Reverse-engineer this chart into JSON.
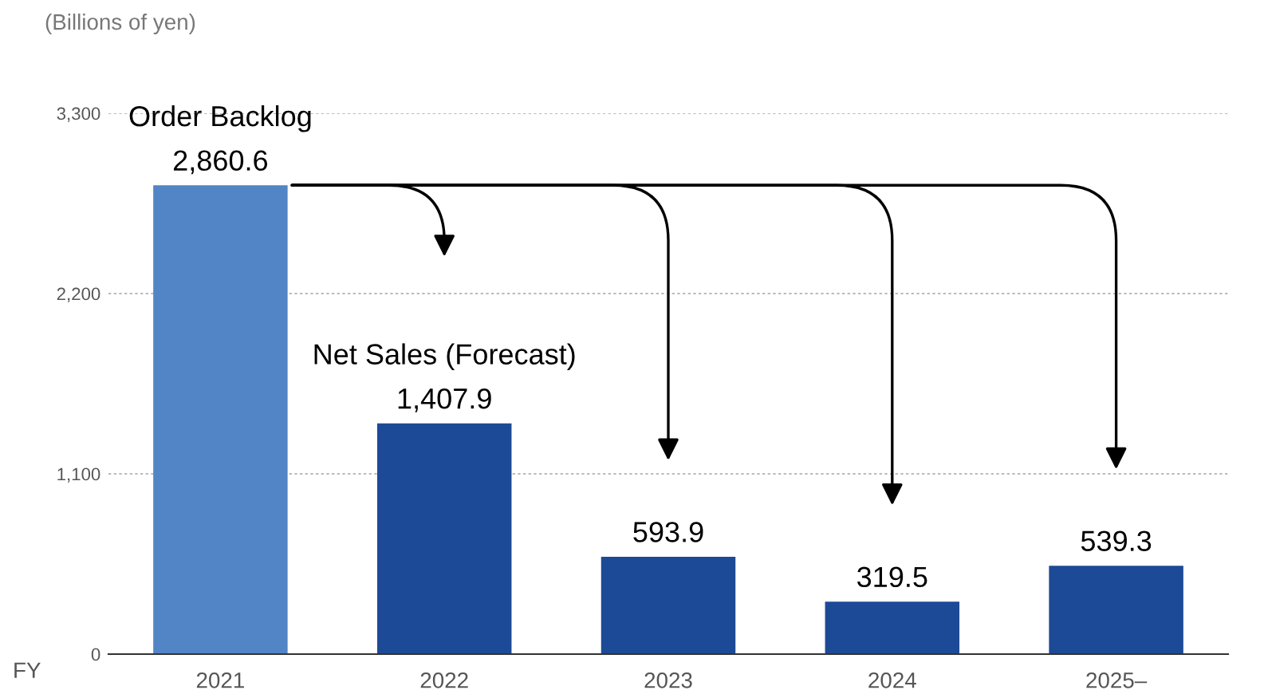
{
  "chart_data": {
    "type": "bar",
    "ylabel": "(Billions of yen)",
    "xlabel": "FY",
    "categories": [
      "2021",
      "2022",
      "2023",
      "2024",
      "2025–"
    ],
    "values": [
      2860.6,
      1407.9,
      593.9,
      319.5,
      539.3
    ],
    "colors": [
      "#5185c5",
      "#1d4a96",
      "#1d4a96",
      "#1d4a96",
      "#1d4a96"
    ],
    "value_labels": [
      "2,860.6",
      "1,407.9",
      "593.9",
      "319.5",
      "539.3"
    ],
    "annotations": [
      {
        "text": "Order Backlog",
        "x": "2021",
        "y": 2860.6
      },
      {
        "text": "Net Sales (Forecast)",
        "x": "2022",
        "y": 1407.9
      }
    ],
    "ylim": [
      0,
      3300
    ],
    "yticks": [
      0,
      {
        "value": 1100,
        "label": "1,100"
      },
      {
        "value": 2200,
        "label": "2,200"
      },
      {
        "value": 3300,
        "label": "3,300"
      }
    ],
    "grid": "y"
  }
}
